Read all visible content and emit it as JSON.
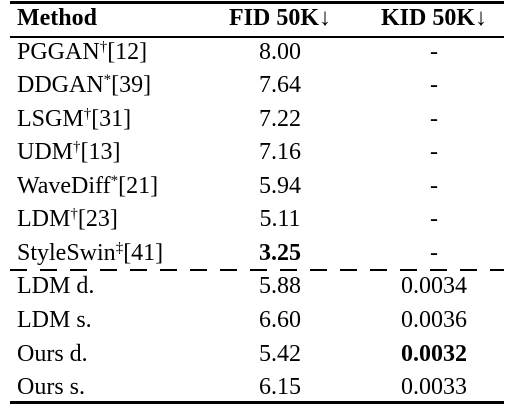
{
  "header": {
    "method": "Method",
    "fid": "FID 50K↓",
    "kid": "KID 50K↓"
  },
  "rows": [
    {
      "name": "PGGAN",
      "mark": "†",
      "ref": "[12]",
      "fid": "8.00",
      "kid": "-",
      "fid_bold": false,
      "kid_bold": false
    },
    {
      "name": "DDGAN",
      "mark": "*",
      "ref": "[39]",
      "fid": "7.64",
      "kid": "-",
      "fid_bold": false,
      "kid_bold": false
    },
    {
      "name": "LSGM",
      "mark": "†",
      "ref": "[31]",
      "fid": "7.22",
      "kid": "-",
      "fid_bold": false,
      "kid_bold": false
    },
    {
      "name": "UDM",
      "mark": "†",
      "ref": "[13]",
      "fid": "7.16",
      "kid": "-",
      "fid_bold": false,
      "kid_bold": false
    },
    {
      "name": "WaveDiff",
      "mark": "*",
      "ref": "[21]",
      "fid": "5.94",
      "kid": "-",
      "fid_bold": false,
      "kid_bold": false
    },
    {
      "name": "LDM",
      "mark": "†",
      "ref": "[23]",
      "fid": "5.11",
      "kid": "-",
      "fid_bold": false,
      "kid_bold": false
    },
    {
      "name": "StyleSwin",
      "mark": "‡",
      "ref": "[41]",
      "fid": "3.25",
      "kid": "-",
      "fid_bold": true,
      "kid_bold": false
    },
    {
      "name": "LDM d.",
      "mark": "",
      "ref": "",
      "fid": "5.88",
      "kid": "0.0034",
      "fid_bold": false,
      "kid_bold": false
    },
    {
      "name": "LDM s.",
      "mark": "",
      "ref": "",
      "fid": "6.60",
      "kid": "0.0036",
      "fid_bold": false,
      "kid_bold": false
    },
    {
      "name": "Ours d.",
      "mark": "",
      "ref": "",
      "fid": "5.42",
      "kid": "0.0032",
      "fid_bold": false,
      "kid_bold": true
    },
    {
      "name": "Ours s.",
      "mark": "",
      "ref": "",
      "fid": "6.15",
      "kid": "0.0033",
      "fid_bold": false,
      "kid_bold": false
    }
  ],
  "dashed_separator_after_row": 6
}
